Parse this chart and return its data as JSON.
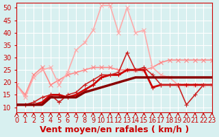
{
  "xlabel": "Vent moyen/en rafales ( km/h )",
  "ylabel": "",
  "background_color": "#d8f0f0",
  "grid_color": "#ffffff",
  "xlim": [
    0,
    23
  ],
  "ylim": [
    8,
    52
  ],
  "yticks": [
    10,
    15,
    20,
    25,
    30,
    35,
    40,
    45,
    50
  ],
  "xticks": [
    0,
    1,
    2,
    3,
    4,
    5,
    6,
    7,
    8,
    9,
    10,
    11,
    12,
    13,
    14,
    15,
    16,
    17,
    18,
    19,
    20,
    21,
    22,
    23
  ],
  "lines": [
    {
      "x": [
        0,
        1,
        2,
        3,
        4,
        5,
        6,
        7,
        8,
        9,
        10,
        11,
        12,
        13,
        14,
        15,
        16,
        17,
        18,
        19,
        20,
        21,
        22,
        23
      ],
      "y": [
        11,
        11,
        11,
        12,
        15,
        15,
        14,
        15,
        17,
        19,
        22,
        23,
        23,
        25,
        25,
        25,
        18,
        19,
        19,
        19,
        19,
        19,
        19,
        19
      ],
      "color": "#cc0000",
      "linewidth": 2.0,
      "marker": "+",
      "markersize": 4,
      "zorder": 3
    },
    {
      "x": [
        0,
        1,
        2,
        3,
        4,
        5,
        6,
        7,
        8,
        9,
        10,
        11,
        12,
        13,
        14,
        15,
        16,
        17,
        18,
        19,
        20,
        21,
        22,
        23
      ],
      "y": [
        11,
        11,
        12,
        14,
        15,
        12,
        15,
        16,
        19,
        21,
        23,
        23,
        24,
        32,
        25,
        26,
        23,
        19,
        19,
        19,
        11,
        15,
        19,
        19
      ],
      "color": "#cc2222",
      "linewidth": 1.2,
      "marker": "+",
      "markersize": 4,
      "zorder": 3
    },
    {
      "x": [
        0,
        1,
        2,
        3,
        4,
        5,
        6,
        7,
        8,
        9,
        10,
        11,
        12,
        13,
        14,
        15,
        16,
        17,
        18,
        19,
        20,
        21,
        22,
        23
      ],
      "y": [
        19,
        15,
        23,
        26,
        19,
        21,
        23,
        24,
        25,
        26,
        26,
        26,
        25,
        25,
        25,
        25,
        26,
        28,
        29,
        29,
        29,
        29,
        29,
        29
      ],
      "color": "#ff8888",
      "linewidth": 1.2,
      "marker": "x",
      "markersize": 4,
      "zorder": 2
    },
    {
      "x": [
        0,
        1,
        2,
        3,
        4,
        5,
        6,
        7,
        8,
        9,
        10,
        11,
        12,
        13,
        14,
        15,
        16,
        17,
        18,
        19,
        20,
        21,
        22,
        23
      ],
      "y": [
        19,
        14,
        22,
        25,
        26,
        19,
        24,
        33,
        36,
        41,
        51,
        51,
        40,
        50,
        40,
        41,
        26,
        23,
        22,
        19,
        19,
        19,
        19,
        19
      ],
      "color": "#ffaaaa",
      "linewidth": 1.2,
      "marker": "x",
      "markersize": 4,
      "zorder": 2
    },
    {
      "x": [
        0,
        1,
        2,
        3,
        4,
        5,
        6,
        7,
        8,
        9,
        10,
        11,
        12,
        13,
        14,
        15,
        16,
        17,
        18,
        19,
        20,
        21,
        22,
        23
      ],
      "y": [
        11,
        11,
        11,
        11,
        14,
        14,
        14,
        14,
        16,
        17,
        18,
        19,
        20,
        21,
        22,
        22,
        22,
        22,
        22,
        22,
        22,
        22,
        22,
        22
      ],
      "color": "#880000",
      "linewidth": 2.5,
      "marker": null,
      "markersize": 0,
      "zorder": 4
    }
  ],
  "arrow_color": "#cc0000",
  "xlabel_fontsize": 9,
  "tick_fontsize": 7
}
